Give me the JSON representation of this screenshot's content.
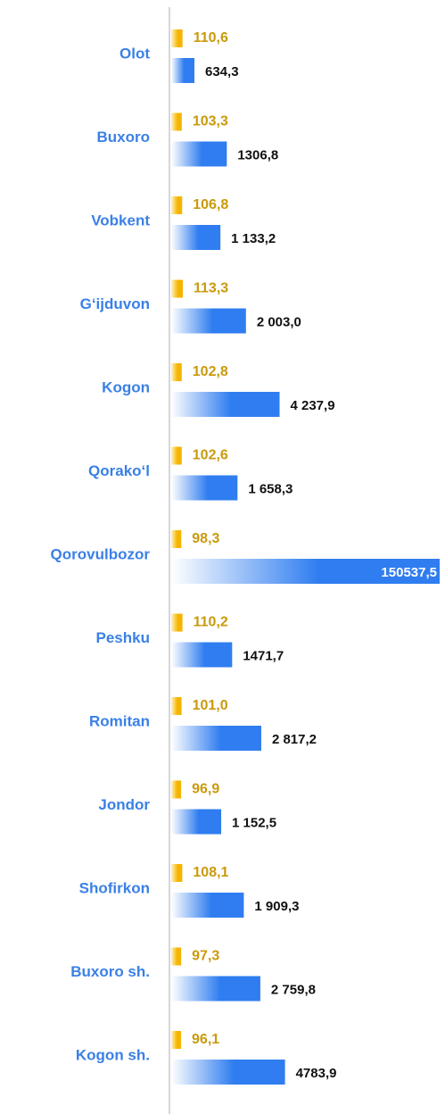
{
  "chart_data": {
    "type": "bar",
    "orientation": "horizontal",
    "xscale": "log",
    "categories": [
      "Olot",
      "Buxoro",
      "Vobkent",
      "G‘ijduvon",
      "Kogon",
      "Qorako‘l",
      "Qorovulbozor",
      "Peshku",
      "Romitan",
      "Jondor",
      "Shofirkon",
      "Buxoro sh.",
      "Kogon sh."
    ],
    "series": [
      {
        "color": "#f5b400",
        "values": [
          110.6,
          103.3,
          106.8,
          113.3,
          102.8,
          102.6,
          98.3,
          110.2,
          101.0,
          96.9,
          108.1,
          97.3,
          96.1
        ],
        "value_labels": [
          "110,6",
          "103,3",
          "106,8",
          "113,3",
          "102,8",
          "102,6",
          "98,3",
          "110,2",
          "101,0",
          "96,9",
          "108,1",
          "97,3",
          "96,1"
        ]
      },
      {
        "color": "#2f7df0",
        "values": [
          634.3,
          1306.8,
          1133.2,
          2003.0,
          4237.9,
          1658.3,
          150537.5,
          1471.7,
          2817.2,
          1152.5,
          1909.3,
          2759.8,
          4783.9
        ],
        "value_labels": [
          "634,3",
          "1306,8",
          "1 133,2",
          "2 003,0",
          "4 237,9",
          "1 658,3",
          "150537,5",
          "1471,7",
          "2 817,2",
          "1 152,5",
          "1 909,3",
          "2 759,8",
          "4783,9"
        ]
      }
    ]
  }
}
